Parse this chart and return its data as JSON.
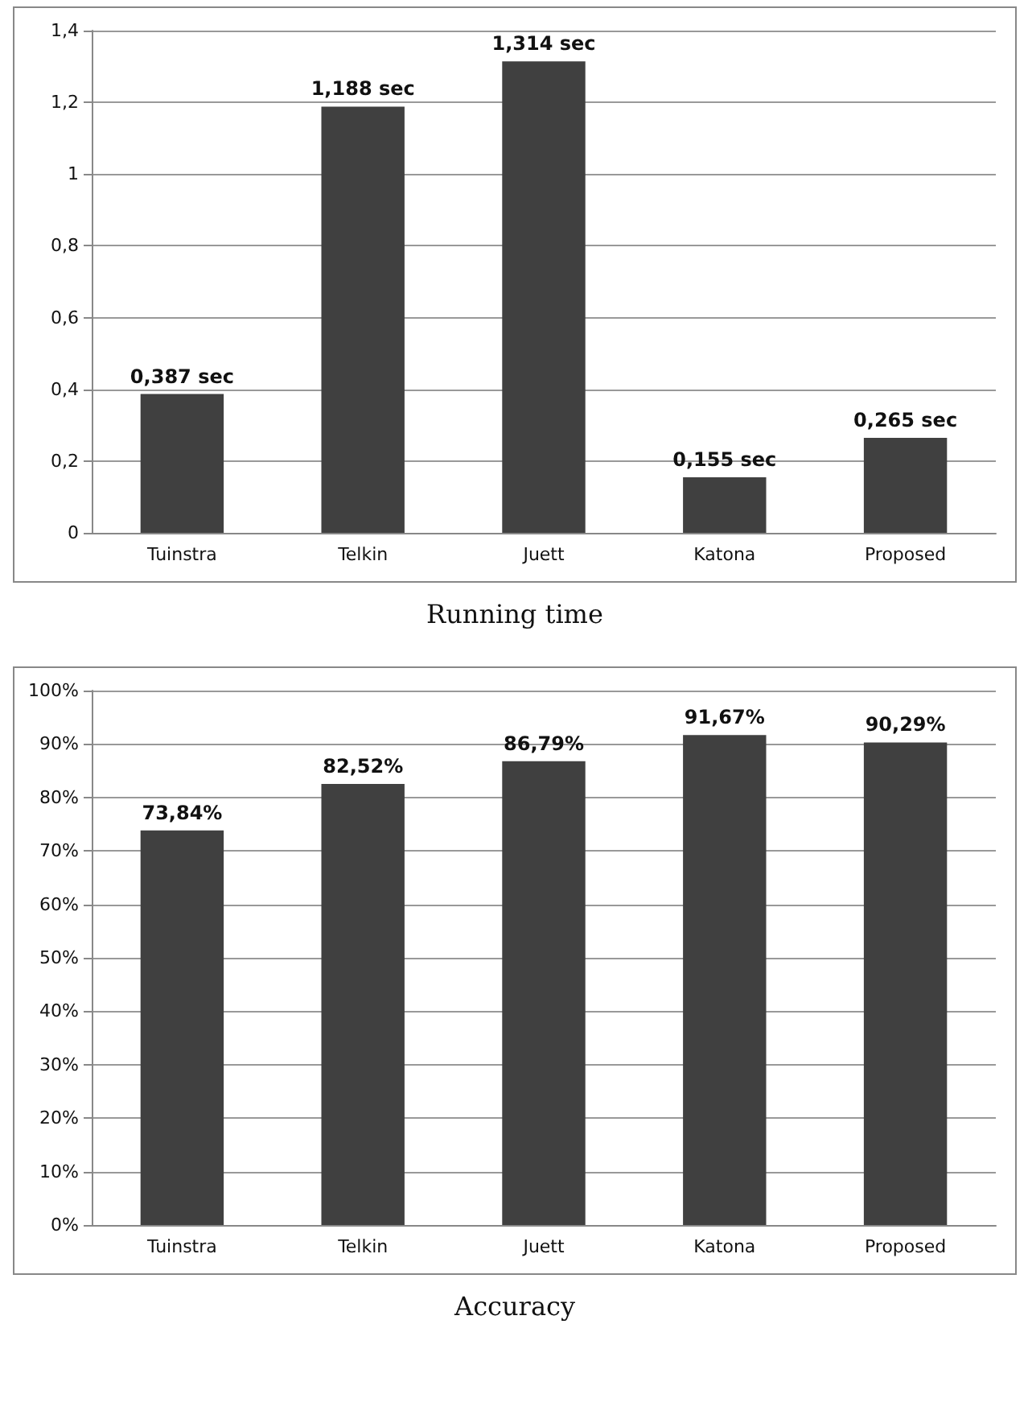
{
  "chart_data": [
    {
      "type": "bar",
      "title": "Running time",
      "categories": [
        "Tuinstra",
        "Telkin",
        "Juett",
        "Katona",
        "Proposed"
      ],
      "values": [
        0.387,
        1.188,
        1.314,
        0.155,
        0.265
      ],
      "value_labels": [
        "0,387 sec",
        "1,188 sec",
        "1,314 sec",
        "0,155 sec",
        "0,265 sec"
      ],
      "color": "#404040",
      "ylim": [
        0,
        1.4
      ],
      "yticks": [
        0,
        {
          "value": 0.2,
          "label": "0,2"
        },
        {
          "value": 0.4,
          "label": "0,4"
        },
        {
          "value": 0.6,
          "label": "0,6"
        },
        {
          "value": 0.8,
          "label": "0,8"
        },
        1,
        {
          "value": 1.2,
          "label": "1,2"
        },
        {
          "value": 1.4,
          "label": "1,4"
        }
      ],
      "grid": "y"
    },
    {
      "type": "bar",
      "title": "Accuracy",
      "categories": [
        "Tuinstra",
        "Telkin",
        "Juett",
        "Katona",
        "Proposed"
      ],
      "values": [
        73.84,
        82.52,
        86.79,
        91.67,
        90.29
      ],
      "value_labels": [
        "73,84%",
        "82,52%",
        "86,79%",
        "91,67%",
        "90,29%"
      ],
      "color": "#404040",
      "ylim": [
        0,
        100
      ],
      "yticks": [
        {
          "value": 0,
          "label": "0%"
        },
        {
          "value": 10,
          "label": "10%"
        },
        {
          "value": 20,
          "label": "20%"
        },
        {
          "value": 30,
          "label": "30%"
        },
        {
          "value": 40,
          "label": "40%"
        },
        {
          "value": 50,
          "label": "50%"
        },
        {
          "value": 60,
          "label": "60%"
        },
        {
          "value": 70,
          "label": "70%"
        },
        {
          "value": 80,
          "label": "80%"
        },
        {
          "value": 90,
          "label": "90%"
        },
        {
          "value": 100,
          "label": "100%"
        }
      ],
      "grid": "y"
    }
  ]
}
